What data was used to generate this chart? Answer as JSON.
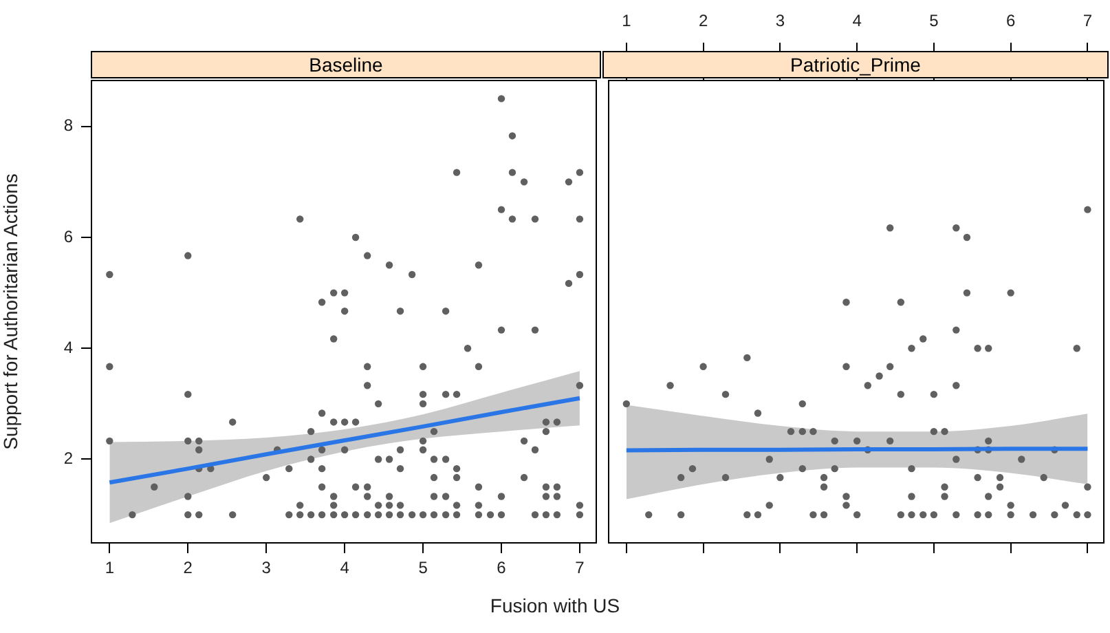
{
  "chart_data": [
    {
      "type": "scatter",
      "title": "Baseline",
      "xlabel": "Fusion with US",
      "ylabel": "Support for Authoritarian Actions",
      "marker": "circle",
      "xlim": [
        0.76,
        7.22
      ],
      "xticks": [
        1,
        2,
        3,
        4,
        5,
        6,
        7
      ],
      "ylim": [
        0.48,
        8.84
      ],
      "yticks": [
        2,
        4,
        6,
        8
      ],
      "series": [
        {
          "color": "#606060",
          "x": [
            1,
            1,
            1,
            1.29,
            1.57,
            2,
            2,
            2,
            2,
            2,
            2.14,
            2.14,
            2.14,
            2.14,
            2.29,
            2.57,
            2.57,
            3,
            3.14,
            3.29,
            3.29,
            3.43,
            3.43,
            3.43,
            3.57,
            3.57,
            3.57,
            3.71,
            3.71,
            3.71,
            3.71,
            3.71,
            3.71,
            3.86,
            3.86,
            3.86,
            3.86,
            3.86,
            3.86,
            4,
            4,
            4,
            4,
            4,
            4.14,
            4.14,
            4.14,
            4.14,
            4.29,
            4.29,
            4.29,
            4.29,
            4.29,
            4.29,
            4.43,
            4.43,
            4.43,
            4.43,
            4.57,
            4.57,
            4.57,
            4.57,
            4.57,
            4.71,
            4.71,
            4.71,
            4.71,
            4.71,
            4.86,
            4.86,
            5,
            5,
            5,
            5,
            5,
            5,
            5.14,
            5.14,
            5.14,
            5.14,
            5.14,
            5.29,
            5.29,
            5.29,
            5.29,
            5.29,
            5.43,
            5.43,
            5.43,
            5.43,
            5.43,
            5.43,
            5.57,
            5.71,
            5.71,
            5.71,
            5.71,
            5.71,
            5.86,
            6,
            6,
            6,
            6,
            6,
            6.14,
            6.14,
            6.14,
            6.29,
            6.29,
            6.29,
            6.43,
            6.43,
            6.43,
            6.43,
            6.57,
            6.57,
            6.57,
            6.57,
            6.57,
            6.71,
            6.71,
            6.71,
            6.71,
            6.86,
            6.86,
            7,
            7,
            7,
            7,
            7,
            7
          ],
          "values": [
            5.33,
            3.67,
            2.33,
            1,
            1.5,
            5.67,
            3.17,
            2.33,
            1.33,
            1,
            2.33,
            2.17,
            1.83,
            1,
            1.83,
            2.67,
            1,
            1.67,
            2.17,
            1.83,
            1,
            1,
            1.17,
            6.33,
            1,
            2,
            2.5,
            1,
            4.83,
            2.83,
            2.17,
            1.83,
            1.5,
            1,
            5,
            4.17,
            2.67,
            1.33,
            1.17,
            5,
            4.67,
            2.67,
            2.17,
            1,
            6,
            2.67,
            1.5,
            1,
            5.67,
            3.67,
            3.33,
            1.5,
            1.33,
            1,
            3,
            2,
            1.17,
            1,
            5.5,
            2,
            1.33,
            1.17,
            1,
            4.67,
            2.17,
            1.83,
            1.17,
            1,
            5.33,
            1,
            3.67,
            3.17,
            3,
            2.33,
            2.17,
            1,
            2.5,
            2,
            1.67,
            1.33,
            1,
            4.67,
            3.17,
            2,
            1.33,
            1,
            7.17,
            3.17,
            1.83,
            1.67,
            1.17,
            1,
            4,
            5.5,
            3.67,
            1.5,
            1.17,
            1,
            1,
            8.5,
            6.5,
            4.33,
            1.33,
            1,
            7.83,
            7.17,
            6.33,
            7,
            2.33,
            1.67,
            6.33,
            4.33,
            2.17,
            1,
            2.67,
            2.5,
            1.5,
            1.33,
            1,
            2.67,
            1.5,
            1.33,
            1,
            7,
            5.17,
            7.17,
            6.33,
            5.33,
            3.33,
            1.17,
            1
          ]
        },
        {
          "type": "line",
          "marker": "none",
          "color": "#2a76e6",
          "x": [
            1,
            2,
            3,
            4,
            5,
            6,
            7
          ],
          "values": [
            1.58,
            1.83,
            2.09,
            2.34,
            2.59,
            2.85,
            3.1
          ],
          "lower": [
            0.85,
            1.33,
            1.79,
            2.14,
            2.37,
            2.5,
            2.61
          ],
          "upper": [
            2.31,
            2.33,
            2.39,
            2.54,
            2.81,
            3.2,
            3.59
          ]
        }
      ]
    },
    {
      "type": "scatter",
      "title": "Patriotic_Prime",
      "marker": "circle",
      "tick_labels": "x",
      "xlim": [
        0.76,
        7.22
      ],
      "xticks": [
        1,
        2,
        3,
        4,
        5,
        6,
        7
      ],
      "ylim": [
        0.48,
        8.84
      ],
      "yticks": [
        2,
        4,
        6,
        8
      ],
      "series": [
        {
          "color": "#606060",
          "x": [
            1,
            1.29,
            1.57,
            1.71,
            1.71,
            1.86,
            2,
            2.29,
            2.29,
            2.57,
            2.57,
            2.71,
            2.71,
            2.86,
            2.86,
            3,
            3.14,
            3.29,
            3.29,
            3.29,
            3.43,
            3.43,
            3.57,
            3.57,
            3.57,
            3.71,
            3.71,
            3.86,
            3.86,
            3.86,
            3.86,
            4,
            4,
            4.14,
            4.14,
            4.29,
            4.43,
            4.43,
            4.43,
            4.57,
            4.57,
            4.57,
            4.71,
            4.71,
            4.71,
            4.71,
            4.86,
            4.86,
            5,
            5,
            5,
            5.14,
            5.14,
            5.14,
            5.29,
            5.29,
            5.29,
            5.29,
            5.29,
            5.43,
            5.43,
            5.57,
            5.57,
            5.57,
            5.57,
            5.71,
            5.71,
            5.71,
            5.71,
            5.71,
            5.86,
            5.86,
            6,
            6,
            6,
            6.14,
            6.29,
            6.43,
            6.57,
            6.57,
            6.71,
            6.86,
            6.86,
            7,
            7,
            7
          ],
          "values": [
            3,
            1,
            3.33,
            1.67,
            1,
            1.83,
            3.67,
            3.17,
            1.67,
            3.83,
            1,
            1,
            2.83,
            2,
            1.17,
            1.67,
            2.5,
            2.5,
            3,
            1.83,
            2.5,
            1,
            1,
            1.67,
            1.5,
            2.33,
            1.83,
            4.83,
            3.67,
            1.33,
            1.17,
            2.33,
            1,
            3.33,
            2.17,
            3.5,
            6.17,
            3.67,
            2.33,
            4.83,
            3.17,
            1,
            4,
            1.83,
            1.33,
            1,
            4.17,
            1,
            3.17,
            2.5,
            1,
            2.5,
            1.5,
            1.33,
            6.17,
            4.33,
            3.33,
            2,
            1,
            6,
            5,
            4,
            2.17,
            1.67,
            1,
            4,
            2.33,
            2.17,
            1.33,
            1,
            1.67,
            1.5,
            5,
            1.17,
            1,
            2,
            1,
            1.67,
            2.17,
            1,
            1.17,
            4,
            1,
            6.5,
            1.5,
            1
          ]
        },
        {
          "type": "line",
          "marker": "none",
          "color": "#2a76e6",
          "x": [
            1,
            2,
            3,
            4,
            5,
            6,
            7
          ],
          "values": [
            2.16,
            2.17,
            2.17,
            2.18,
            2.18,
            2.19,
            2.19
          ],
          "lower": [
            1.28,
            1.55,
            1.75,
            1.85,
            1.85,
            1.75,
            1.55
          ],
          "upper": [
            2.98,
            2.78,
            2.6,
            2.5,
            2.5,
            2.6,
            2.82
          ]
        }
      ]
    }
  ]
}
